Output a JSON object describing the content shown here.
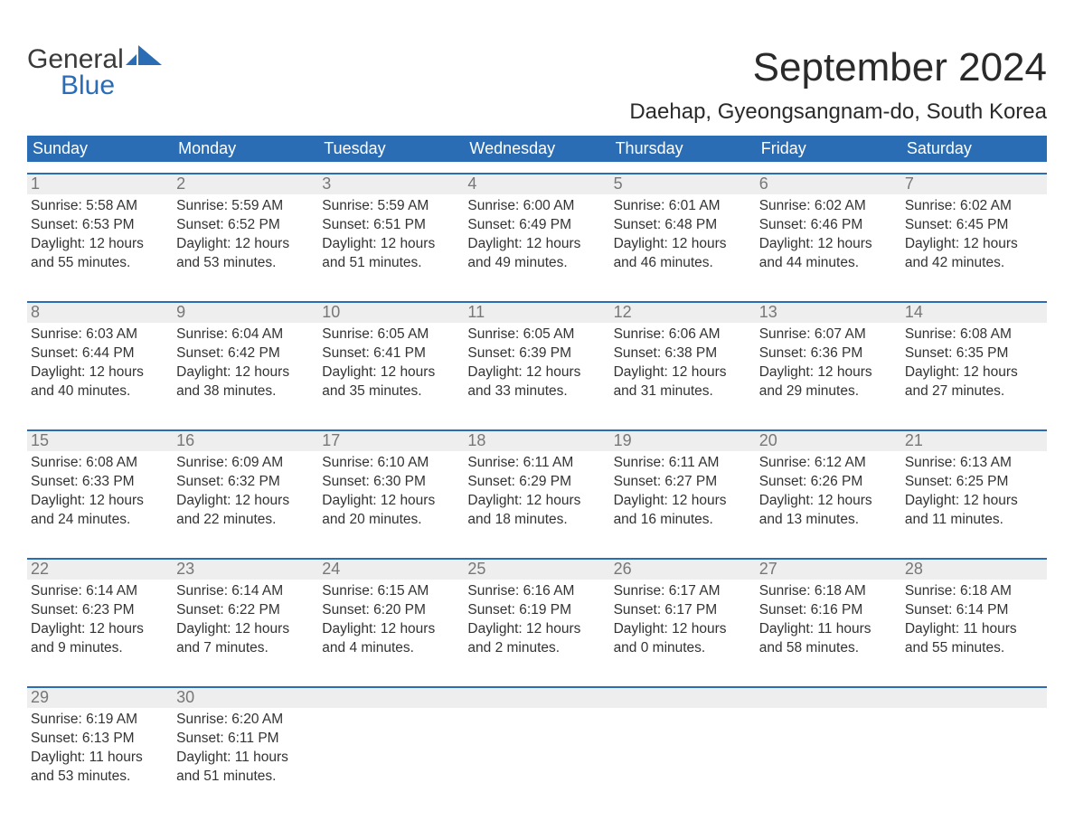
{
  "logo": {
    "line1": "General",
    "line2": "Blue",
    "flag_color": "#2a6db4"
  },
  "title": "September 2024",
  "location": "Daehap, Gyeongsangnam-do, South Korea",
  "colors": {
    "header_bg": "#2a6db4",
    "header_text": "#ffffff",
    "daynum_bg": "#eeeeee",
    "daynum_text": "#777777",
    "body_text": "#333333",
    "page_bg": "#ffffff",
    "divider": "#2a6db4"
  },
  "day_names": [
    "Sunday",
    "Monday",
    "Tuesday",
    "Wednesday",
    "Thursday",
    "Friday",
    "Saturday"
  ],
  "labels": {
    "sunrise": "Sunrise:",
    "sunset": "Sunset:",
    "daylight": "Daylight:"
  },
  "weeks": [
    [
      {
        "n": "1",
        "sunrise": "5:58 AM",
        "sunset": "6:53 PM",
        "daylight": "12 hours and 55 minutes."
      },
      {
        "n": "2",
        "sunrise": "5:59 AM",
        "sunset": "6:52 PM",
        "daylight": "12 hours and 53 minutes."
      },
      {
        "n": "3",
        "sunrise": "5:59 AM",
        "sunset": "6:51 PM",
        "daylight": "12 hours and 51 minutes."
      },
      {
        "n": "4",
        "sunrise": "6:00 AM",
        "sunset": "6:49 PM",
        "daylight": "12 hours and 49 minutes."
      },
      {
        "n": "5",
        "sunrise": "6:01 AM",
        "sunset": "6:48 PM",
        "daylight": "12 hours and 46 minutes."
      },
      {
        "n": "6",
        "sunrise": "6:02 AM",
        "sunset": "6:46 PM",
        "daylight": "12 hours and 44 minutes."
      },
      {
        "n": "7",
        "sunrise": "6:02 AM",
        "sunset": "6:45 PM",
        "daylight": "12 hours and 42 minutes."
      }
    ],
    [
      {
        "n": "8",
        "sunrise": "6:03 AM",
        "sunset": "6:44 PM",
        "daylight": "12 hours and 40 minutes."
      },
      {
        "n": "9",
        "sunrise": "6:04 AM",
        "sunset": "6:42 PM",
        "daylight": "12 hours and 38 minutes."
      },
      {
        "n": "10",
        "sunrise": "6:05 AM",
        "sunset": "6:41 PM",
        "daylight": "12 hours and 35 minutes."
      },
      {
        "n": "11",
        "sunrise": "6:05 AM",
        "sunset": "6:39 PM",
        "daylight": "12 hours and 33 minutes."
      },
      {
        "n": "12",
        "sunrise": "6:06 AM",
        "sunset": "6:38 PM",
        "daylight": "12 hours and 31 minutes."
      },
      {
        "n": "13",
        "sunrise": "6:07 AM",
        "sunset": "6:36 PM",
        "daylight": "12 hours and 29 minutes."
      },
      {
        "n": "14",
        "sunrise": "6:08 AM",
        "sunset": "6:35 PM",
        "daylight": "12 hours and 27 minutes."
      }
    ],
    [
      {
        "n": "15",
        "sunrise": "6:08 AM",
        "sunset": "6:33 PM",
        "daylight": "12 hours and 24 minutes."
      },
      {
        "n": "16",
        "sunrise": "6:09 AM",
        "sunset": "6:32 PM",
        "daylight": "12 hours and 22 minutes."
      },
      {
        "n": "17",
        "sunrise": "6:10 AM",
        "sunset": "6:30 PM",
        "daylight": "12 hours and 20 minutes."
      },
      {
        "n": "18",
        "sunrise": "6:11 AM",
        "sunset": "6:29 PM",
        "daylight": "12 hours and 18 minutes."
      },
      {
        "n": "19",
        "sunrise": "6:11 AM",
        "sunset": "6:27 PM",
        "daylight": "12 hours and 16 minutes."
      },
      {
        "n": "20",
        "sunrise": "6:12 AM",
        "sunset": "6:26 PM",
        "daylight": "12 hours and 13 minutes."
      },
      {
        "n": "21",
        "sunrise": "6:13 AM",
        "sunset": "6:25 PM",
        "daylight": "12 hours and 11 minutes."
      }
    ],
    [
      {
        "n": "22",
        "sunrise": "6:14 AM",
        "sunset": "6:23 PM",
        "daylight": "12 hours and 9 minutes."
      },
      {
        "n": "23",
        "sunrise": "6:14 AM",
        "sunset": "6:22 PM",
        "daylight": "12 hours and 7 minutes."
      },
      {
        "n": "24",
        "sunrise": "6:15 AM",
        "sunset": "6:20 PM",
        "daylight": "12 hours and 4 minutes."
      },
      {
        "n": "25",
        "sunrise": "6:16 AM",
        "sunset": "6:19 PM",
        "daylight": "12 hours and 2 minutes."
      },
      {
        "n": "26",
        "sunrise": "6:17 AM",
        "sunset": "6:17 PM",
        "daylight": "12 hours and 0 minutes."
      },
      {
        "n": "27",
        "sunrise": "6:18 AM",
        "sunset": "6:16 PM",
        "daylight": "11 hours and 58 minutes."
      },
      {
        "n": "28",
        "sunrise": "6:18 AM",
        "sunset": "6:14 PM",
        "daylight": "11 hours and 55 minutes."
      }
    ],
    [
      {
        "n": "29",
        "sunrise": "6:19 AM",
        "sunset": "6:13 PM",
        "daylight": "11 hours and 53 minutes."
      },
      {
        "n": "30",
        "sunrise": "6:20 AM",
        "sunset": "6:11 PM",
        "daylight": "11 hours and 51 minutes."
      },
      {
        "empty": true
      },
      {
        "empty": true
      },
      {
        "empty": true
      },
      {
        "empty": true
      },
      {
        "empty": true
      }
    ]
  ]
}
